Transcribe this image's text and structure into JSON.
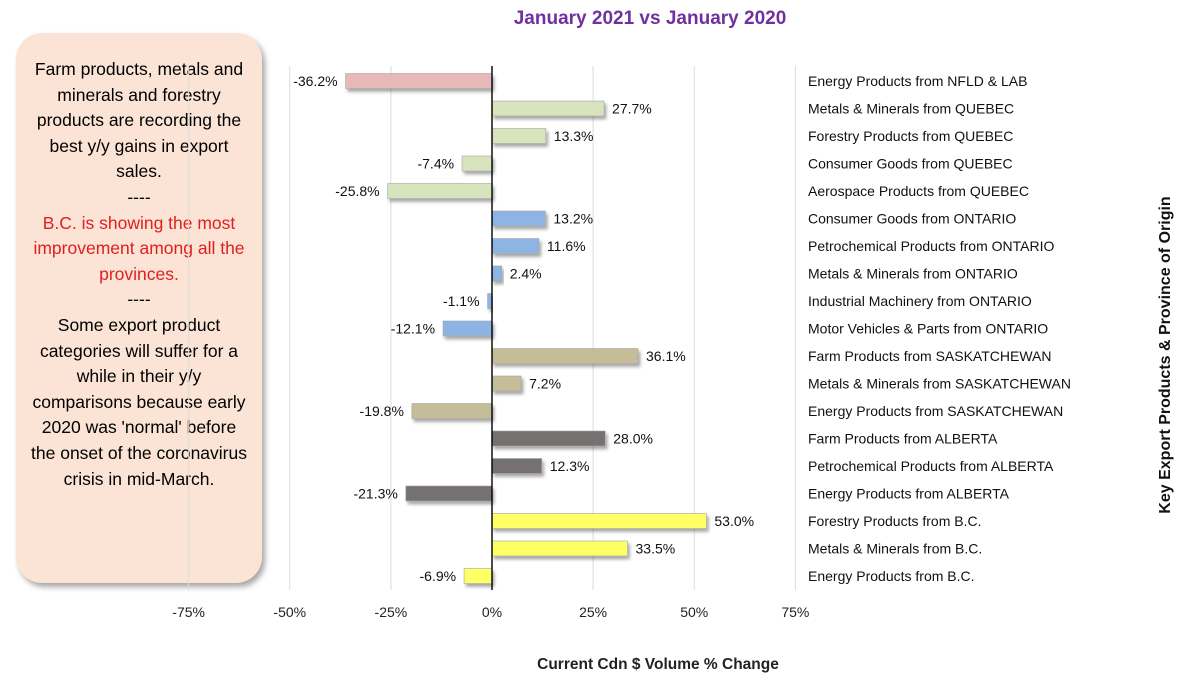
{
  "callout": {
    "para1": "Farm products, metals and minerals and forestry products are recording the best y/y gains in export sales.",
    "sep1": "----",
    "para2": "B.C. is showing the most improvement among all the provinces.",
    "sep2": "----",
    "para3": "Some export product categories will suffer for a while in their y/y comparisons because early 2020 was 'normal' before the onset of the coronavirus crisis in mid-March."
  },
  "chart_data": {
    "type": "bar",
    "orientation": "horizontal",
    "title": "January 2021 vs January 2020",
    "xlabel": "Current Cdn $ Volume % Change",
    "ylabel": "Key Export Products & Province of Origin",
    "xlim": [
      -75,
      75
    ],
    "xticks": [
      "-75%",
      "-50%",
      "-25%",
      "0%",
      "25%",
      "50%",
      "75%"
    ],
    "grid": "vertical",
    "categories": [
      "Energy Products from NFLD & LAB",
      "Metals & Minerals from QUEBEC",
      "Forestry Products from QUEBEC",
      "Consumer Goods from QUEBEC",
      "Aerospace Products from QUEBEC",
      "Consumer Goods from ONTARIO",
      "Petrochemical Products from ONTARIO",
      "Metals & Minerals from ONTARIO",
      "Industrial Machinery from ONTARIO",
      "Motor Vehicles & Parts from ONTARIO",
      "Farm Products from SASKATCHEWAN",
      "Metals & Minerals from SASKATCHEWAN",
      "Energy Products from SASKATCHEWAN",
      "Farm Products from ALBERTA",
      "Petrochemical Products from ALBERTA",
      "Energy Products from ALBERTA",
      "Forestry Products from B.C.",
      "Metals & Minerals from B.C.",
      "Energy Products from B.C."
    ],
    "values": [
      -36.2,
      27.7,
      13.3,
      -7.4,
      -25.8,
      13.2,
      11.6,
      2.4,
      -1.1,
      -12.1,
      36.1,
      7.2,
      -19.8,
      28.0,
      12.3,
      -21.3,
      53.0,
      33.5,
      -6.9
    ],
    "value_labels": [
      "-36.2%",
      "27.7%",
      "13.3%",
      "-7.4%",
      "-25.8%",
      "13.2%",
      "11.6%",
      "2.4%",
      "-1.1%",
      "-12.1%",
      "36.1%",
      "7.2%",
      "-19.8%",
      "28.0%",
      "12.3%",
      "-21.3%",
      "53.0%",
      "33.5%",
      "-6.9%"
    ],
    "bar_colors": [
      "#e6b8b7",
      "#d8e4bc",
      "#d8e4bc",
      "#d8e4bc",
      "#d8e4bc",
      "#8db4e2",
      "#8db4e2",
      "#8db4e2",
      "#8db4e2",
      "#8db4e2",
      "#c4bd97",
      "#c4bd97",
      "#c4bd97",
      "#767171",
      "#767171",
      "#767171",
      "#ffff66",
      "#ffff66",
      "#ffff66"
    ]
  }
}
